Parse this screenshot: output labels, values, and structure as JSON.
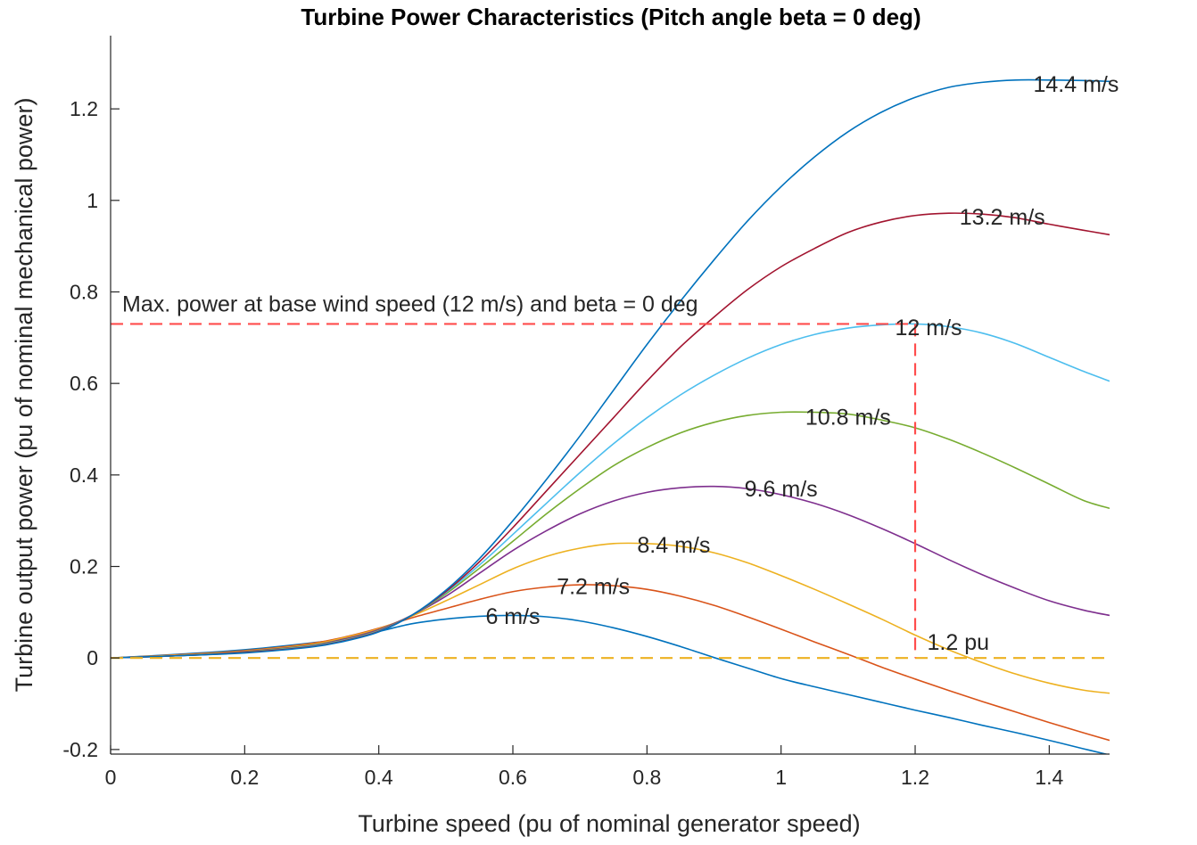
{
  "chart_data": {
    "type": "line",
    "title": "Turbine Power Characteristics (Pitch angle beta = 0 deg)",
    "xlabel": "Turbine speed (pu of nominal generator speed)",
    "ylabel": "Turbine output power (pu of nominal mechanical power)",
    "xlim": [
      0,
      1.49
    ],
    "ylim": [
      -0.21,
      1.36
    ],
    "xticks": [
      0,
      0.2,
      0.4,
      0.6,
      0.8,
      1,
      1.2,
      1.4
    ],
    "xtick_labels": [
      "0",
      "0.2",
      "0.4",
      "0.6",
      "0.8",
      "1",
      "1.2",
      "1.4"
    ],
    "yticks": [
      -0.2,
      0,
      0.2,
      0.4,
      0.6,
      0.8,
      1,
      1.2
    ],
    "ytick_labels": [
      "-0.2",
      "0",
      "0.2",
      "0.4",
      "0.6",
      "0.8",
      "1",
      "1.2"
    ],
    "grid": false,
    "x": [
      0,
      0.1,
      0.2,
      0.3,
      0.35,
      0.4,
      0.45,
      0.5,
      0.55,
      0.6,
      0.65,
      0.7,
      0.75,
      0.8,
      0.85,
      0.9,
      0.95,
      1.0,
      1.05,
      1.1,
      1.15,
      1.2,
      1.25,
      1.3,
      1.35,
      1.4,
      1.45,
      1.49
    ],
    "series": [
      {
        "name": "6 m/s",
        "color": "#0072BD",
        "label": "6 m/s",
        "label_at": [
          0.6,
          0.092
        ],
        "values": [
          0,
          0.008,
          0.018,
          0.033,
          0.042,
          0.058,
          0.075,
          0.085,
          0.091,
          0.093,
          0.09,
          0.081,
          0.066,
          0.047,
          0.025,
          0.001,
          -0.022,
          -0.045,
          -0.063,
          -0.08,
          -0.097,
          -0.114,
          -0.13,
          -0.147,
          -0.163,
          -0.18,
          -0.198,
          -0.212
        ]
      },
      {
        "name": "7.2 m/s",
        "color": "#D95319",
        "label": "7.2 m/s",
        "label_at": [
          0.72,
          0.157
        ],
        "values": [
          0,
          0.007,
          0.016,
          0.032,
          0.046,
          0.065,
          0.088,
          0.108,
          0.128,
          0.145,
          0.155,
          0.16,
          0.158,
          0.15,
          0.135,
          0.115,
          0.09,
          0.063,
          0.035,
          0.008,
          -0.02,
          -0.046,
          -0.071,
          -0.095,
          -0.118,
          -0.141,
          -0.163,
          -0.18
        ]
      },
      {
        "name": "8.4 m/s",
        "color": "#EDB120",
        "label": "8.4 m/s",
        "label_at": [
          0.84,
          0.248
        ],
        "values": [
          0,
          0.006,
          0.015,
          0.03,
          0.045,
          0.064,
          0.092,
          0.125,
          0.16,
          0.195,
          0.222,
          0.24,
          0.25,
          0.25,
          0.244,
          0.23,
          0.208,
          0.18,
          0.15,
          0.118,
          0.085,
          0.05,
          0.018,
          -0.01,
          -0.035,
          -0.055,
          -0.07,
          -0.077
        ]
      },
      {
        "name": "9.6 m/s",
        "color": "#7E2F8E",
        "label": "9.6 m/s",
        "label_at": [
          1.0,
          0.37
        ],
        "values": [
          0,
          0.005,
          0.014,
          0.028,
          0.042,
          0.062,
          0.094,
          0.135,
          0.185,
          0.235,
          0.278,
          0.315,
          0.343,
          0.362,
          0.372,
          0.375,
          0.37,
          0.357,
          0.338,
          0.313,
          0.283,
          0.25,
          0.215,
          0.182,
          0.152,
          0.125,
          0.105,
          0.093
        ]
      },
      {
        "name": "10.8 m/s",
        "color": "#77AC30",
        "label": "10.8 m/s",
        "label_at": [
          1.1,
          0.527
        ],
        "values": [
          0,
          0.005,
          0.013,
          0.027,
          0.04,
          0.06,
          0.094,
          0.14,
          0.196,
          0.255,
          0.315,
          0.37,
          0.42,
          0.46,
          0.492,
          0.515,
          0.53,
          0.537,
          0.537,
          0.533,
          0.52,
          0.503,
          0.478,
          0.448,
          0.415,
          0.38,
          0.345,
          0.327
        ]
      },
      {
        "name": "12 m/s",
        "color": "#4DBEEE",
        "label": "12 m/s",
        "label_at": [
          1.22,
          0.723
        ],
        "values": [
          0,
          0.005,
          0.012,
          0.026,
          0.039,
          0.059,
          0.094,
          0.143,
          0.203,
          0.27,
          0.338,
          0.405,
          0.468,
          0.525,
          0.575,
          0.618,
          0.655,
          0.685,
          0.707,
          0.721,
          0.728,
          0.73,
          0.724,
          0.71,
          0.687,
          0.657,
          0.627,
          0.605
        ]
      },
      {
        "name": "13.2 m/s",
        "color": "#A2142F",
        "label": "13.2 m/s",
        "label_at": [
          1.33,
          0.965
        ],
        "values": [
          0,
          0.005,
          0.012,
          0.025,
          0.038,
          0.058,
          0.094,
          0.145,
          0.21,
          0.285,
          0.365,
          0.445,
          0.525,
          0.605,
          0.68,
          0.745,
          0.805,
          0.855,
          0.895,
          0.93,
          0.953,
          0.967,
          0.972,
          0.97,
          0.962,
          0.948,
          0.935,
          0.925
        ]
      },
      {
        "name": "14.4 m/s",
        "color": "#0072BD",
        "label": "14.4 m/s",
        "label_at": [
          1.44,
          1.255
        ],
        "values": [
          0,
          0.005,
          0.011,
          0.024,
          0.037,
          0.057,
          0.094,
          0.148,
          0.217,
          0.3,
          0.39,
          0.485,
          0.585,
          0.685,
          0.78,
          0.87,
          0.955,
          1.03,
          1.095,
          1.15,
          1.193,
          1.225,
          1.247,
          1.258,
          1.263,
          1.263,
          1.262,
          1.26
        ]
      }
    ],
    "reference_lines": {
      "max_power_y": 0.73,
      "max_power_x": 1.2,
      "max_power_color": "#FF4D4D",
      "zero_line_color": "#EDB120"
    },
    "annotations": [
      {
        "text": "Max. power at base wind speed (12 m/s) and beta = 0 deg",
        "at": [
          0.02,
          0.775
        ]
      },
      {
        "text": "1.2 pu",
        "at": [
          1.21,
          0.035
        ]
      }
    ]
  }
}
